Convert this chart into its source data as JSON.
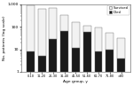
{
  "categories": [
    "0-10",
    "11-20",
    "21-30",
    "31-40",
    "41-50",
    "51-60",
    "61-70",
    "71-80",
    ">80"
  ],
  "survived": [
    890,
    640,
    670,
    280,
    155,
    50,
    85,
    42,
    27
  ],
  "died": [
    8,
    5,
    28,
    65,
    12,
    58,
    8,
    10,
    4
  ],
  "survived_color": "#f2f2f2",
  "died_color": "#1a1a1a",
  "bar_edge_color": "#666666",
  "ylabel": "No. patients (log scale)",
  "xlabel": "Age group, y",
  "ylim_log": [
    1,
    1000
  ],
  "yticks": [
    1,
    10,
    100,
    1000
  ],
  "ytick_labels": [
    "1",
    "10",
    "100",
    "1,000"
  ],
  "legend_survived": "Survived",
  "legend_died": "Died",
  "bar_width": 0.7,
  "background_color": "#ffffff"
}
